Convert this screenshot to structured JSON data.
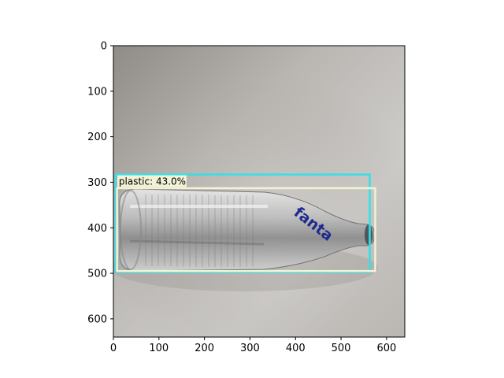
{
  "figure": {
    "image_subject": "glass bottle with Fanta logo lying on a white table",
    "logo_text": "fanta",
    "background_color": "#ffffff",
    "axes_color": "#000000"
  },
  "axes": {
    "x_ticks": [
      {
        "value": 0,
        "label": "0"
      },
      {
        "value": 100,
        "label": "100"
      },
      {
        "value": 200,
        "label": "200"
      },
      {
        "value": 300,
        "label": "300"
      },
      {
        "value": 400,
        "label": "400"
      },
      {
        "value": 500,
        "label": "500"
      },
      {
        "value": 600,
        "label": "600"
      }
    ],
    "y_ticks": [
      {
        "value": 0,
        "label": "0"
      },
      {
        "value": 100,
        "label": "100"
      },
      {
        "value": 200,
        "label": "200"
      },
      {
        "value": 300,
        "label": "300"
      },
      {
        "value": 400,
        "label": "400"
      },
      {
        "value": 500,
        "label": "500"
      },
      {
        "value": 600,
        "label": "600"
      }
    ],
    "x_range": [
      0,
      640
    ],
    "y_range": [
      640,
      0
    ]
  },
  "detections": [
    {
      "label": "plastic: 43.0%",
      "x1": 5,
      "y1": 283,
      "x2": 563,
      "y2": 497,
      "color": "#33e0e8",
      "outer_color": "#33e0e8"
    },
    {
      "label": "",
      "x1": 8,
      "y1": 313,
      "x2": 575,
      "y2": 495,
      "color": "#f2f2d6",
      "outer_color": "#f2f2d6"
    }
  ]
}
